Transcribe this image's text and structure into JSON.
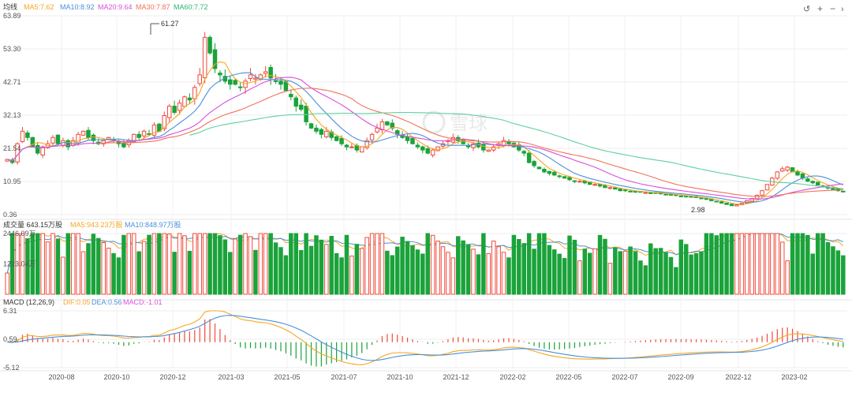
{
  "legend_price": {
    "label": "均线",
    "ma5": "MA5:7.62",
    "ma10": "MA10:8.92",
    "ma20": "MA20:9.64",
    "ma30": "MA30:7.87",
    "ma60": "MA60:7.72"
  },
  "legend_volume": {
    "label": "成交量 643.15万股",
    "ma5": "MA5:943.23万股",
    "ma10": "MA10:848.97万股"
  },
  "legend_macd": {
    "label": "MACD (12,26,9)",
    "dif": "DIF:0.05",
    "dea": "DEA:0.56",
    "macd": "MACD:-1.01"
  },
  "watermark": "雪球",
  "annotations": {
    "high": "61.27",
    "low": "2.98"
  },
  "controls": [
    "reset-icon",
    "zoom-in-icon",
    "zoom-out-icon",
    "next-icon"
  ],
  "colors": {
    "up": "#ef4b3c",
    "down": "#1aa33a",
    "ma5": "#f5a623",
    "ma10": "#4a90d9",
    "ma20": "#d94fd9",
    "ma30": "#f0735a",
    "ma60": "#5fd0a0"
  },
  "chart_data": [
    {
      "type": "candlestick",
      "title": "",
      "ylim": [
        0.36,
        63.89
      ],
      "y_ticks": [
        "63.89",
        "53.30",
        "42.71",
        "32.13",
        "21.54",
        "10.95",
        "0.36"
      ],
      "x_ticks": [
        "2020-08",
        "2020-10",
        "2020-12",
        "2021-03",
        "2021-05",
        "2021-07",
        "2021-10",
        "2021-12",
        "2022-02",
        "2022-05",
        "2022-07",
        "2022-09",
        "2022-12",
        "2023-02"
      ],
      "close": [
        18,
        17,
        23,
        27,
        25,
        22,
        20,
        22,
        23,
        25,
        23,
        24,
        22,
        24,
        26,
        27,
        25,
        24,
        23,
        24,
        25,
        24,
        23,
        22,
        24,
        26,
        25,
        27,
        26,
        29,
        27,
        32,
        35,
        33,
        36,
        38,
        37,
        41,
        45,
        57,
        52,
        47,
        45,
        43,
        42,
        42,
        41,
        43,
        45,
        44,
        45,
        46,
        44,
        43,
        42,
        40,
        38,
        35,
        34,
        30,
        28,
        27,
        26,
        27,
        25,
        24,
        23,
        22,
        22,
        21,
        22,
        24,
        26,
        28,
        30,
        29,
        28,
        26,
        25,
        24,
        23,
        22,
        21,
        20,
        21,
        22,
        23,
        24,
        25,
        24,
        23,
        22,
        23,
        22,
        21,
        21,
        22,
        23,
        24,
        23,
        22,
        21,
        20,
        17,
        16,
        15,
        14,
        13.5,
        13,
        12.5,
        12,
        11.5,
        11,
        11,
        10.5,
        10,
        10,
        9.5,
        9,
        9,
        8.5,
        8,
        8,
        7.8,
        7.6,
        7.5,
        7.4,
        7.3,
        7.2,
        7,
        6.8,
        6.6,
        6.5,
        6.3,
        6.1,
        6,
        5.8,
        5.5,
        5.2,
        4.8,
        4.5,
        4,
        3.6,
        3.2,
        3.5,
        4,
        4.8,
        5.5,
        6.5,
        8,
        10,
        12,
        14,
        15,
        15.5,
        14,
        13,
        12,
        11,
        10.5,
        9.8,
        9.2,
        8.8,
        8.4,
        8,
        7.62
      ],
      "high_label": 61.27,
      "low_label": 2.98,
      "ma_series": [
        {
          "name": "MA5",
          "last": 7.62
        },
        {
          "name": "MA10",
          "last": 8.92
        },
        {
          "name": "MA20",
          "last": 9.64
        },
        {
          "name": "MA30",
          "last": 7.87
        },
        {
          "name": "MA60",
          "last": 7.72
        }
      ]
    },
    {
      "type": "bar",
      "title": "",
      "y_ticks": [
        "2446.09万",
        "1223.04万"
      ],
      "ylim": [
        0,
        2446.09
      ],
      "unit": "万股",
      "last": 643.15,
      "ma_series": [
        {
          "name": "MA5",
          "last": 943.23
        },
        {
          "name": "MA10",
          "last": 848.97
        }
      ]
    },
    {
      "type": "macd",
      "title": "",
      "y_ticks": [
        "6.31",
        "0.59",
        "-5.12"
      ],
      "ylim": [
        -5.12,
        6.31
      ],
      "series": [
        {
          "name": "DIF",
          "last": 0.05
        },
        {
          "name": "DEA",
          "last": 0.56
        },
        {
          "name": "MACD",
          "last": -1.01
        }
      ]
    }
  ]
}
